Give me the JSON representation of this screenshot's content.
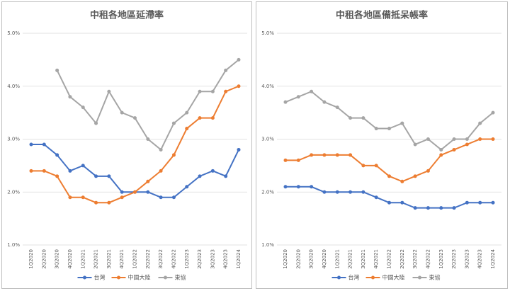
{
  "chart_data": [
    {
      "type": "line",
      "title": "中租各地區延滯率",
      "categories": [
        "1Q2020",
        "2Q2020",
        "3Q2020",
        "4Q2020",
        "1Q2021",
        "2Q2021",
        "3Q2021",
        "4Q2021",
        "1Q2022",
        "2Q2022",
        "3Q2022",
        "4Q2022",
        "1Q2023",
        "2Q2023",
        "3Q2023",
        "4Q2023",
        "1Q2024"
      ],
      "series": [
        {
          "name": "台灣",
          "color": "#4472c4",
          "values": [
            2.9,
            2.9,
            2.7,
            2.4,
            2.5,
            2.3,
            2.3,
            2.0,
            2.0,
            2.0,
            1.9,
            1.9,
            2.1,
            2.3,
            2.4,
            2.3,
            2.8
          ]
        },
        {
          "name": "中國大陸",
          "color": "#ed7d31",
          "values": [
            2.4,
            2.4,
            2.3,
            1.9,
            1.9,
            1.8,
            1.8,
            1.9,
            2.0,
            2.2,
            2.4,
            2.7,
            3.2,
            3.4,
            3.4,
            3.9,
            4.0
          ]
        },
        {
          "name": "東協",
          "color": "#a5a5a5",
          "values": [
            null,
            null,
            4.3,
            3.8,
            3.6,
            3.3,
            3.9,
            3.5,
            3.4,
            3.0,
            2.8,
            3.3,
            3.5,
            3.9,
            3.9,
            4.3,
            4.5
          ]
        }
      ],
      "ylim": [
        1,
        5
      ],
      "yticks": [
        {
          "value": 1,
          "label": "1.0%"
        },
        {
          "value": 2,
          "label": "2.0%"
        },
        {
          "value": 3,
          "label": "3.0%"
        },
        {
          "value": 4,
          "label": "4.0%"
        },
        {
          "value": 5,
          "label": "5.0%"
        }
      ],
      "grid": true,
      "legend": "bottom"
    },
    {
      "type": "line",
      "title": "中租各地區備抵呆帳率",
      "categories": [
        "1Q2020",
        "2Q2020",
        "3Q2020",
        "4Q2020",
        "1Q2021",
        "2Q2021",
        "3Q2021",
        "4Q2021",
        "1Q2022",
        "2Q2022",
        "3Q2022",
        "4Q2022",
        "1Q2023",
        "2Q2023",
        "3Q2023",
        "4Q2023",
        "1Q2024"
      ],
      "series": [
        {
          "name": "台灣",
          "color": "#4472c4",
          "values": [
            2.1,
            2.1,
            2.1,
            2.0,
            2.0,
            2.0,
            2.0,
            1.9,
            1.8,
            1.8,
            1.7,
            1.7,
            1.7,
            1.7,
            1.8,
            1.8,
            1.8
          ]
        },
        {
          "name": "中國大陸",
          "color": "#ed7d31",
          "values": [
            2.6,
            2.6,
            2.7,
            2.7,
            2.7,
            2.7,
            2.5,
            2.5,
            2.3,
            2.2,
            2.3,
            2.4,
            2.7,
            2.8,
            2.9,
            3.0,
            3.0
          ]
        },
        {
          "name": "東協",
          "color": "#a5a5a5",
          "values": [
            3.7,
            3.8,
            3.9,
            3.7,
            3.6,
            3.4,
            3.4,
            3.2,
            3.2,
            3.3,
            2.9,
            3.0,
            2.8,
            3.0,
            3.0,
            3.3,
            3.5
          ]
        }
      ],
      "ylim": [
        1,
        5
      ],
      "yticks": [
        {
          "value": 1,
          "label": "1.0%"
        },
        {
          "value": 2,
          "label": "2.0%"
        },
        {
          "value": 3,
          "label": "3.0%"
        },
        {
          "value": 4,
          "label": "4.0%"
        },
        {
          "value": 5,
          "label": "5.0%"
        }
      ],
      "grid": true,
      "legend": "bottom"
    }
  ]
}
